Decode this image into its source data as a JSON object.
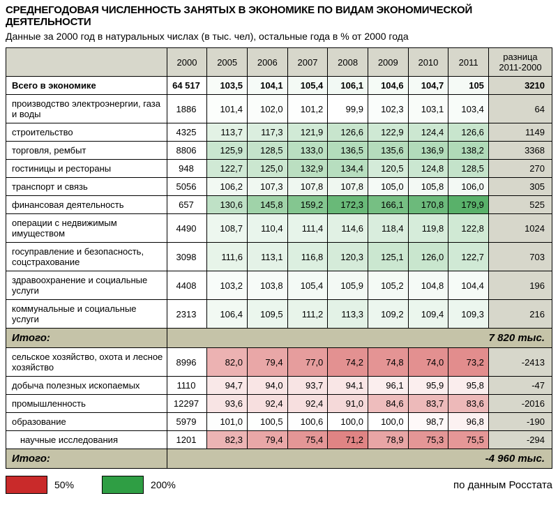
{
  "title": "СРЕДНЕГОДОВАЯ ЧИСЛЕННОСТЬ ЗАНЯТЫХ В ЭКОНОМИКЕ ПО ВИДАМ ЭКОНОМИЧЕСКОЙ ДЕЯТЕЛЬНОСТИ",
  "title_fontsize": 15,
  "subtitle": "Данные за 2000 год в натуральных числах (в тыс. чел), остальные года в % от 2000 года",
  "subtitle_fontsize": 14,
  "years": [
    "2000",
    "2005",
    "2006",
    "2007",
    "2008",
    "2009",
    "2010",
    "2011"
  ],
  "diff_header": "разница 2011-2000",
  "header_bg": "#d7d7cb",
  "diff_col_bg": "#d7d7cb",
  "itogo_bg": "#c5c3a8",
  "color_scale": {
    "type": "diverging",
    "low_value": 50,
    "low_color": "#c92a2a",
    "mid_value": 100,
    "mid_color": "#ffffff",
    "high_value": 200,
    "high_color": "#2f9e44"
  },
  "sections": [
    {
      "rows": [
        {
          "label": "Всего в экономике",
          "bold": true,
          "base": "64 517",
          "pct": [
            103.5,
            104.1,
            105.4,
            106.1,
            104.6,
            104.7,
            105
          ],
          "diff": "3210"
        },
        {
          "label": "производство электроэнергии, газа и воды",
          "base": "1886",
          "pct": [
            101.4,
            102.0,
            101.2,
            99.9,
            102.3,
            103.1,
            103.4
          ],
          "diff": "64"
        },
        {
          "label": "строительство",
          "base": "4325",
          "pct": [
            113.7,
            117.3,
            121.9,
            126.6,
            122.9,
            124.4,
            126.6
          ],
          "diff": "1149"
        },
        {
          "label": "торговля, рембыт",
          "base": "8806",
          "pct": [
            125.9,
            128.5,
            133.0,
            136.5,
            135.6,
            136.9,
            138.2
          ],
          "diff": "3368"
        },
        {
          "label": "гостиницы и рестораны",
          "base": "948",
          "pct": [
            122.7,
            125.0,
            132.9,
            134.4,
            120.5,
            124.8,
            128.5
          ],
          "diff": "270"
        },
        {
          "label": "транспорт и связь",
          "base": "5056",
          "pct": [
            106.2,
            107.3,
            107.8,
            107.8,
            105.0,
            105.8,
            106.0
          ],
          "diff": "305"
        },
        {
          "label": "финансовая деятельность",
          "base": "657",
          "pct": [
            130.6,
            145.8,
            159.2,
            172.3,
            166.1,
            170.8,
            179.9
          ],
          "diff": "525"
        },
        {
          "label": "операции с недвижимым имуществом",
          "base": "4490",
          "pct": [
            108.7,
            110.4,
            111.4,
            114.6,
            118.4,
            119.8,
            122.8
          ],
          "diff": "1024"
        },
        {
          "label": "госуправление и безопасность, соцстрахование",
          "base": "3098",
          "pct": [
            111.6,
            113.1,
            116.8,
            120.3,
            125.1,
            126.0,
            122.7
          ],
          "diff": "703"
        },
        {
          "label": "здравоохранение и социальные услуги",
          "base": "4408",
          "pct": [
            103.2,
            103.8,
            105.4,
            105.9,
            105.2,
            104.8,
            104.4
          ],
          "diff": "196"
        },
        {
          "label": "коммунальные и социальные услуги",
          "base": "2313",
          "pct": [
            106.4,
            109.5,
            111.2,
            113.3,
            109.2,
            109.4,
            109.3
          ],
          "diff": "216"
        }
      ],
      "subtotal": {
        "label": "Итого:",
        "value": "7 820 тыс."
      }
    },
    {
      "rows": [
        {
          "label": "сельское хозяйство, охота и лесное хозяйство",
          "base": "8996",
          "pct": [
            82.0,
            79.4,
            77.0,
            74.2,
            74.8,
            74.0,
            73.2
          ],
          "diff": "-2413"
        },
        {
          "label": "добыча полезных ископаемых",
          "base": "1110",
          "pct": [
            94.7,
            94.0,
            93.7,
            94.1,
            96.1,
            95.9,
            95.8
          ],
          "diff": "-47"
        },
        {
          "label": "промышленность",
          "base": "12297",
          "pct": [
            93.6,
            92.4,
            92.4,
            91.0,
            84.6,
            83.7,
            83.6
          ],
          "diff": "-2016"
        },
        {
          "label": "образование",
          "base": "5979",
          "pct": [
            101.0,
            100.5,
            100.6,
            100.0,
            100.0,
            98.7,
            96.8
          ],
          "diff": "-190"
        },
        {
          "label": "научные исследования",
          "indent": true,
          "base": "1201",
          "pct": [
            82.3,
            79.4,
            75.4,
            71.2,
            78.9,
            75.3,
            75.5
          ],
          "diff": "-294"
        }
      ],
      "subtotal": {
        "label": "Итого:",
        "value": "-4 960 тыс."
      }
    }
  ],
  "legend": {
    "low_label": "50%",
    "low_swatch": "#c92a2a",
    "high_label": "200%",
    "high_swatch": "#2f9e44"
  },
  "source": "по данным Росстата",
  "source_fontsize": 15
}
